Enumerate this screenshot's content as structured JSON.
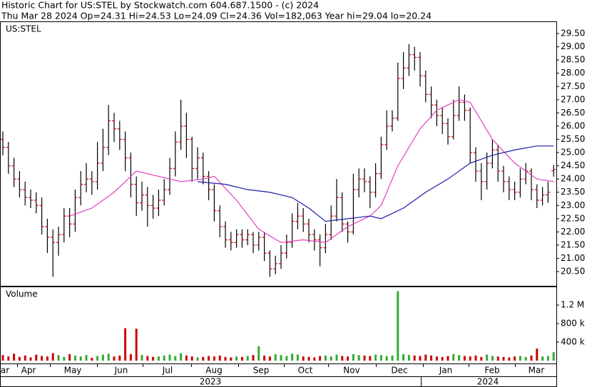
{
  "chart_data": {
    "type": "ohlc",
    "title": "Historic Chart for US:STEL by Stockwatch.com 604.687.1500 - (c) 2024",
    "subtitle": "Thu Mar 28 2024   Op=24.31   Hi=24.53   Lo=24.09   Cl=24.36   Vol=182,063   Year hi=29.04   lo=20.24",
    "symbol": "US:STEL",
    "volume_label": "Volume",
    "months": [
      "ar",
      "Apr",
      "May",
      "Jun",
      "Jul",
      "Aug",
      "Sep",
      "Oct",
      "Nov",
      "Dec",
      "Jan",
      "Feb",
      "Mar"
    ],
    "years": [
      "2023",
      "2024"
    ],
    "bar_color": "#000000",
    "tick_color": "#cc0000",
    "volume_up_color": "#33aa33",
    "volume_down_color": "#cc0000",
    "open": [
      25.5,
      25.2,
      24.5,
      24.0,
      23.6,
      23.3,
      23.2,
      23.0,
      22.2,
      21.8,
      21.6,
      21.9,
      22.6,
      22.3,
      23.3,
      23.8,
      24.0,
      23.9,
      24.6,
      25.2,
      26.2,
      25.9,
      25.5,
      24.8,
      23.8,
      23.1,
      23.4,
      23.0,
      22.9,
      23.2,
      23.6,
      24.4,
      25.4,
      26.0,
      25.5,
      24.4,
      24.8,
      24.1,
      23.6,
      22.8,
      22.2,
      21.7,
      21.6,
      21.9,
      21.7,
      21.9,
      21.5,
      21.8,
      21.2,
      20.6,
      20.8,
      21.2,
      21.6,
      22.4,
      22.6,
      22.3,
      21.9,
      21.7,
      21.4,
      21.9,
      22.6,
      23.3,
      22.3,
      22.0,
      23.6,
      24.0,
      23.9,
      23.5,
      24.2,
      25.3,
      26.0,
      26.3,
      27.8,
      28.2,
      28.7,
      28.6,
      27.9,
      27.2,
      26.8,
      26.4,
      26.1,
      25.6,
      26.4,
      26.9,
      26.6,
      25.0,
      24.3,
      23.9,
      24.6,
      25.1,
      24.3,
      23.9,
      23.6,
      23.5,
      24.0,
      24.3,
      23.6,
      23.2,
      23.4,
      24.31
    ],
    "high": [
      25.8,
      25.4,
      24.8,
      24.3,
      23.9,
      23.6,
      23.5,
      23.3,
      22.5,
      22.1,
      22.2,
      22.9,
      22.9,
      23.6,
      24.3,
      24.6,
      24.3,
      25.4,
      25.9,
      26.8,
      26.5,
      26.2,
      25.8,
      25.0,
      24.1,
      23.9,
      23.7,
      23.4,
      23.6,
      24.0,
      24.8,
      25.8,
      27.0,
      26.5,
      25.6,
      25.2,
      25.0,
      24.3,
      23.8,
      23.0,
      22.4,
      22.0,
      22.1,
      22.1,
      22.1,
      22.0,
      22.0,
      22.0,
      21.3,
      21.1,
      21.5,
      21.9,
      22.7,
      23.1,
      22.9,
      22.5,
      22.1,
      21.9,
      22.3,
      23.0,
      24.0,
      23.5,
      22.4,
      24.2,
      24.4,
      24.4,
      24.1,
      24.6,
      25.6,
      26.6,
      26.6,
      28.4,
      28.8,
      29.1,
      29.0,
      28.8,
      28.1,
      27.5,
      27.0,
      26.7,
      26.3,
      27.0,
      27.5,
      27.2,
      26.7,
      25.2,
      24.6,
      25.0,
      25.5,
      25.3,
      24.5,
      24.1,
      23.9,
      24.4,
      24.6,
      24.4,
      23.8,
      23.7,
      23.9,
      24.53
    ],
    "low": [
      24.9,
      24.2,
      23.7,
      23.3,
      23.0,
      22.9,
      22.7,
      21.9,
      21.2,
      20.3,
      21.1,
      21.6,
      21.8,
      22.0,
      23.0,
      23.5,
      23.4,
      23.6,
      24.3,
      24.9,
      25.4,
      25.1,
      24.3,
      23.3,
      22.6,
      22.8,
      22.2,
      22.5,
      22.6,
      23.0,
      23.4,
      24.1,
      25.1,
      24.8,
      23.9,
      24.0,
      23.8,
      23.2,
      22.4,
      21.8,
      21.4,
      21.3,
      21.4,
      21.4,
      21.5,
      21.2,
      21.3,
      20.9,
      20.3,
      20.4,
      20.6,
      21.0,
      21.4,
      22.1,
      22.0,
      21.6,
      21.3,
      20.7,
      21.2,
      21.7,
      22.4,
      22.0,
      21.6,
      21.9,
      23.3,
      23.5,
      22.9,
      23.3,
      24.0,
      25.1,
      25.8,
      26.2,
      27.4,
      27.9,
      28.1,
      27.5,
      26.9,
      26.3,
      26.0,
      25.7,
      25.3,
      25.5,
      26.2,
      26.2,
      24.6,
      23.9,
      23.2,
      23.6,
      24.4,
      23.9,
      23.5,
      23.2,
      23.2,
      23.3,
      23.8,
      23.2,
      22.9,
      23.0,
      23.1,
      24.09
    ],
    "close": [
      25.2,
      24.5,
      24.0,
      23.6,
      23.3,
      23.2,
      23.0,
      22.2,
      21.8,
      21.6,
      21.9,
      22.6,
      22.3,
      23.3,
      23.8,
      24.0,
      23.9,
      24.6,
      25.2,
      26.2,
      25.9,
      25.5,
      24.8,
      23.8,
      23.1,
      23.4,
      23.0,
      22.9,
      23.2,
      23.6,
      24.4,
      25.4,
      26.0,
      25.5,
      24.4,
      24.8,
      24.1,
      23.6,
      22.8,
      22.2,
      21.7,
      21.6,
      21.9,
      21.7,
      21.9,
      21.5,
      21.8,
      21.2,
      20.6,
      20.8,
      21.2,
      21.6,
      22.4,
      22.6,
      22.3,
      21.9,
      21.7,
      21.4,
      21.9,
      22.6,
      23.3,
      22.3,
      22.0,
      23.6,
      24.0,
      23.9,
      23.5,
      24.2,
      25.3,
      26.0,
      26.3,
      27.8,
      28.2,
      28.7,
      28.6,
      27.9,
      27.2,
      26.8,
      26.4,
      26.1,
      25.6,
      26.4,
      26.9,
      26.6,
      25.0,
      24.3,
      23.9,
      24.6,
      25.1,
      24.3,
      23.9,
      23.6,
      23.5,
      24.0,
      24.3,
      23.6,
      23.2,
      23.4,
      23.5,
      24.36
    ],
    "volume": [
      120000,
      90000,
      150000,
      80000,
      110000,
      70000,
      130000,
      100000,
      90000,
      160000,
      120000,
      80000,
      140000,
      110000,
      90000,
      120000,
      60000,
      100000,
      130000,
      150000,
      90000,
      110000,
      700000,
      140000,
      690000,
      120000,
      100000,
      80000,
      90000,
      110000,
      130000,
      100000,
      160000,
      110000,
      90000,
      70000,
      80000,
      100000,
      90000,
      110000,
      80000,
      70000,
      90000,
      80000,
      100000,
      120000,
      310000,
      110000,
      90000,
      140000,
      120000,
      100000,
      150000,
      130000,
      90000,
      80000,
      70000,
      100000,
      110000,
      90000,
      130000,
      100000,
      90000,
      140000,
      120000,
      110000,
      100000,
      130000,
      120000,
      100000,
      110000,
      1500000,
      140000,
      120000,
      110000,
      100000,
      130000,
      110000,
      90000,
      80000,
      100000,
      140000,
      120000,
      100000,
      90000,
      110000,
      80000,
      130000,
      100000,
      90000,
      80000,
      70000,
      90000,
      100000,
      80000,
      110000,
      260000,
      90000,
      100000,
      182063
    ],
    "series": [
      {
        "color": "#e040c0",
        "x": [
          12,
          16,
          20,
          24,
          28,
          32,
          36,
          38,
          42,
          46,
          50,
          54,
          58,
          62,
          66,
          68,
          71,
          75,
          78,
          82,
          84,
          88,
          92,
          96,
          99
        ],
        "values": [
          22.6,
          22.9,
          23.5,
          24.3,
          24.1,
          23.9,
          24.0,
          24.1,
          23.2,
          22.1,
          21.6,
          21.7,
          21.6,
          22.2,
          22.6,
          23.0,
          24.5,
          25.9,
          26.6,
          27.0,
          26.9,
          25.5,
          24.6,
          24.0,
          23.9
        ]
      },
      {
        "color": "#1a1aaa",
        "x": [
          35,
          40,
          44,
          48,
          52,
          55,
          58,
          62,
          66,
          68,
          72,
          76,
          80,
          84,
          88,
          92,
          96,
          99
        ],
        "values": [
          23.9,
          23.8,
          23.6,
          23.5,
          23.3,
          22.9,
          22.4,
          22.5,
          22.6,
          22.5,
          22.9,
          23.5,
          24.0,
          24.6,
          24.9,
          25.1,
          25.25,
          25.25
        ]
      }
    ],
    "ylim": [
      19.99,
      29.96
    ],
    "yticks": [
      {
        "value": 20.5,
        "label": "20.50"
      },
      {
        "value": 21,
        "label": "21.00"
      },
      {
        "value": 21.5,
        "label": "21.50"
      },
      {
        "value": 22,
        "label": "22.00"
      },
      {
        "value": 22.5,
        "label": "22.50"
      },
      {
        "value": 23,
        "label": "23.00"
      },
      {
        "value": 23.5,
        "label": "23.50"
      },
      {
        "value": 24,
        "label": "24.00"
      },
      {
        "value": 24.5,
        "label": "24.50"
      },
      {
        "value": 25,
        "label": "25.00"
      },
      {
        "value": 25.5,
        "label": "25.50"
      },
      {
        "value": 26,
        "label": "26.00"
      },
      {
        "value": 26.5,
        "label": "26.50"
      },
      {
        "value": 27,
        "label": "27.00"
      },
      {
        "value": 27.5,
        "label": "27.50"
      },
      {
        "value": 28,
        "label": "28.00"
      },
      {
        "value": 28.5,
        "label": "28.50"
      },
      {
        "value": 29,
        "label": "29.00"
      },
      {
        "value": 29.5,
        "label": "29.50"
      }
    ],
    "y2lim": [
      0,
      1585000
    ],
    "y2ticks": [
      {
        "value": 400000,
        "label": "400 k"
      },
      {
        "value": 800000,
        "label": "800 k"
      },
      {
        "value": 1200000,
        "label": "1.2 M"
      }
    ]
  }
}
